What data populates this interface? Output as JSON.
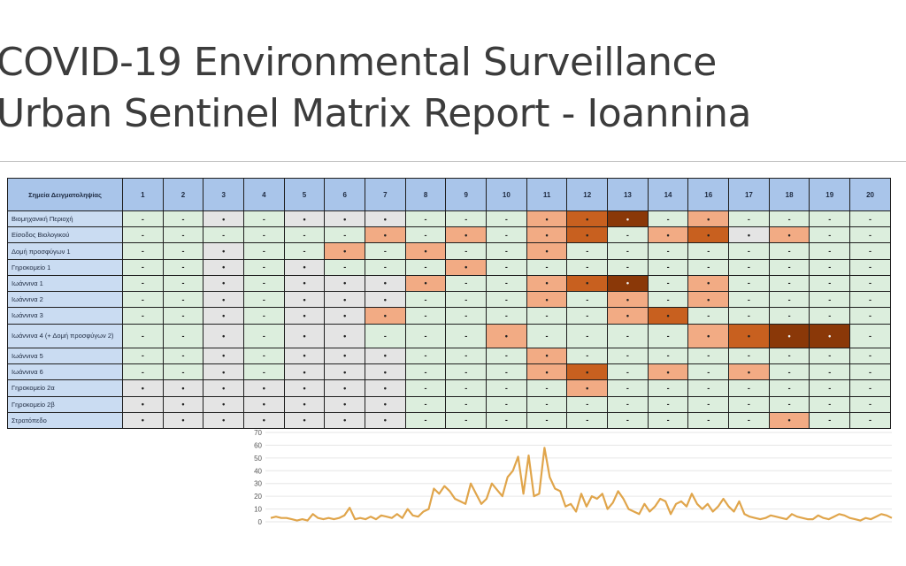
{
  "title_lines": [
    "COVID-19 Environmental Surveillance",
    "Urban Sentinel Matrix Report - Ioannina"
  ],
  "matrix": {
    "site_header": "Σημεία Δειγματοληψίας",
    "columns": [
      "1",
      "2",
      "3",
      "4",
      "5",
      "6",
      "7",
      "8",
      "9",
      "10",
      "11",
      "12",
      "13",
      "14",
      "16",
      "17",
      "18",
      "19",
      "20"
    ],
    "rows": [
      {
        "label": "Βιομηχανική Περιοχή",
        "cells": [
          "n",
          "n",
          "g",
          "n",
          "g",
          "g",
          "g",
          "n",
          "n",
          "n",
          "l",
          "m",
          "h",
          "n",
          "l",
          "n",
          "n",
          "n",
          "n"
        ]
      },
      {
        "label": "Είσοδος Βιολογικού",
        "cells": [
          "n",
          "n",
          "n",
          "n",
          "n",
          "n",
          "l",
          "n",
          "l",
          "n",
          "l",
          "m",
          "n",
          "l",
          "m",
          "g",
          "l",
          "n",
          "n"
        ]
      },
      {
        "label": "Δομή προσφύγων 1",
        "cells": [
          "n",
          "n",
          "g",
          "n",
          "n",
          "l",
          "n",
          "l",
          "n",
          "n",
          "l",
          "n",
          "n",
          "n",
          "n",
          "n",
          "n",
          "n",
          "n"
        ]
      },
      {
        "label": "Γηροκομείο 1",
        "cells": [
          "n",
          "n",
          "g",
          "n",
          "g",
          "n",
          "n",
          "n",
          "l",
          "n",
          "n",
          "n",
          "n",
          "n",
          "n",
          "n",
          "n",
          "n",
          "n"
        ]
      },
      {
        "label": "Ιωάννινα 1",
        "cells": [
          "n",
          "n",
          "g",
          "n",
          "g",
          "g",
          "g",
          "l",
          "n",
          "n",
          "l",
          "m",
          "h",
          "n",
          "l",
          "n",
          "n",
          "n",
          "n"
        ]
      },
      {
        "label": "Ιωάννινα 2",
        "cells": [
          "n",
          "n",
          "g",
          "n",
          "g",
          "g",
          "g",
          "n",
          "n",
          "n",
          "l",
          "n",
          "l",
          "n",
          "l",
          "n",
          "n",
          "n",
          "n"
        ]
      },
      {
        "label": "Ιωάννινα 3",
        "cells": [
          "n",
          "n",
          "g",
          "n",
          "g",
          "g",
          "l",
          "n",
          "n",
          "n",
          "n",
          "n",
          "l",
          "m",
          "n",
          "n",
          "n",
          "n",
          "n"
        ]
      },
      {
        "label": "Ιωάννινα 4 (+ Δομή προσφύγων 2)",
        "cells": [
          "n",
          "n",
          "g",
          "n",
          "g",
          "g",
          "n",
          "n",
          "n",
          "l",
          "n",
          "n",
          "n",
          "n",
          "l",
          "m",
          "h",
          "h",
          "n"
        ],
        "tall": true
      },
      {
        "label": "Ιωάννινα 5",
        "cells": [
          "n",
          "n",
          "g",
          "n",
          "g",
          "g",
          "g",
          "n",
          "n",
          "n",
          "l",
          "n",
          "n",
          "n",
          "n",
          "n",
          "n",
          "n",
          "n"
        ]
      },
      {
        "label": "Ιωάννινα 6",
        "cells": [
          "n",
          "n",
          "g",
          "n",
          "g",
          "g",
          "g",
          "n",
          "n",
          "n",
          "l",
          "m",
          "n",
          "l",
          "n",
          "l",
          "n",
          "n",
          "n"
        ]
      },
      {
        "label": "Γηροκομείο 2α",
        "cells": [
          "g",
          "g",
          "g",
          "g",
          "g",
          "g",
          "g",
          "n",
          "n",
          "n",
          "n",
          "l",
          "n",
          "n",
          "n",
          "n",
          "n",
          "n",
          "n"
        ]
      },
      {
        "label": "Γηροκομείο 2β",
        "cells": [
          "g",
          "g",
          "g",
          "g",
          "g",
          "g",
          "g",
          "n",
          "n",
          "n",
          "n",
          "n",
          "n",
          "n",
          "n",
          "n",
          "n",
          "n",
          "n"
        ]
      },
      {
        "label": "Στρατόπεδο",
        "cells": [
          "g",
          "g",
          "g",
          "g",
          "g",
          "g",
          "g",
          "n",
          "n",
          "n",
          "n",
          "n",
          "n",
          "n",
          "n",
          "n",
          "l",
          "n",
          "n"
        ]
      }
    ],
    "cell_colors": {
      "n": "#dceedd",
      "g": "#e4e4e4",
      "l": "#f2ab84",
      "m": "#c8601f",
      "h": "#8a3808"
    }
  },
  "chart_data": {
    "type": "line",
    "title": "",
    "xlabel": "",
    "ylabel": "",
    "ylim": [
      0,
      70
    ],
    "yticks": [
      0,
      10,
      20,
      30,
      40,
      50,
      60,
      70
    ],
    "grid": true,
    "line_color": "#e0a54b",
    "values": [
      3,
      4,
      3,
      3,
      2,
      1,
      2,
      1,
      6,
      3,
      2,
      3,
      2,
      3,
      5,
      11,
      2,
      3,
      2,
      4,
      2,
      5,
      4,
      3,
      6,
      3,
      10,
      5,
      4,
      8,
      10,
      26,
      22,
      28,
      24,
      18,
      16,
      14,
      30,
      22,
      14,
      18,
      30,
      25,
      20,
      35,
      40,
      51,
      22,
      52,
      20,
      22,
      58,
      35,
      26,
      24,
      12,
      14,
      8,
      22,
      12,
      20,
      18,
      22,
      10,
      15,
      24,
      18,
      10,
      8,
      6,
      14,
      8,
      12,
      18,
      16,
      6,
      14,
      16,
      12,
      22,
      14,
      10,
      14,
      8,
      12,
      18,
      12,
      8,
      16,
      6,
      4,
      3,
      2,
      3,
      5,
      4,
      3,
      2,
      6,
      4,
      3,
      2,
      2,
      5,
      3,
      2,
      4,
      6,
      5,
      3,
      2,
      1,
      3,
      2,
      4,
      6,
      5,
      3
    ]
  }
}
